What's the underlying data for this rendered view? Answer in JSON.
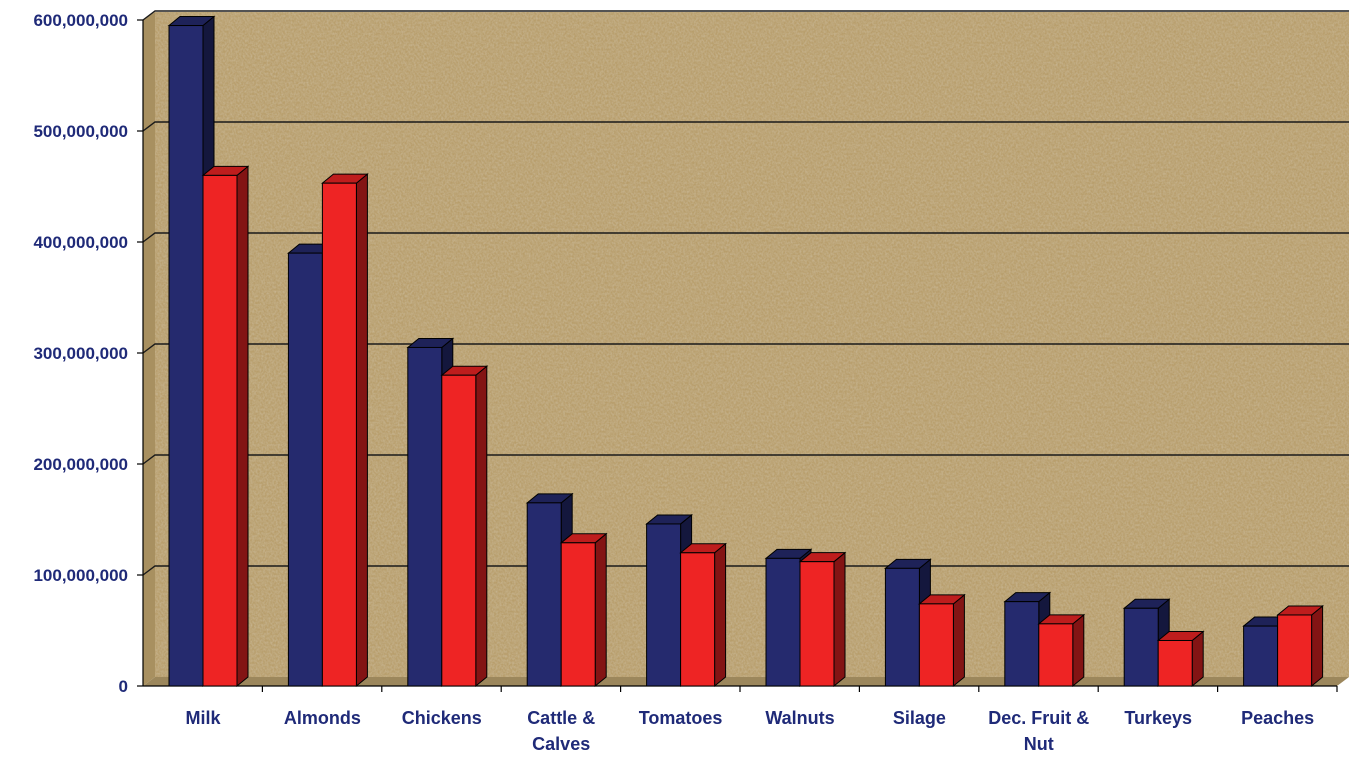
{
  "chart_data": {
    "type": "bar",
    "title": "",
    "xlabel": "",
    "ylabel": "",
    "categories": [
      "Milk",
      "Almonds",
      "Chickens",
      "Cattle & Calves",
      "Tomatoes",
      "Walnuts",
      "Silage",
      "Dec. Fruit & Nut",
      "Turkeys",
      "Peaches"
    ],
    "series": [
      {
        "color": "#252a6e",
        "values": [
          595000000,
          390000000,
          305000000,
          165000000,
          146000000,
          115000000,
          106000000,
          76000000,
          70000000,
          54000000
        ]
      },
      {
        "color": "#ee2424",
        "values": [
          460000000,
          453000000,
          280000000,
          129000000,
          120000000,
          112000000,
          74000000,
          56000000,
          41000000,
          64000000
        ]
      }
    ],
    "ylim": [
      0,
      600000000
    ],
    "yticks": [
      "0",
      "100,000,000",
      "200,000,000",
      "300,000,000",
      "400,000,000",
      "500,000,000",
      "600,000,000"
    ],
    "grid": true,
    "legend": "none"
  }
}
